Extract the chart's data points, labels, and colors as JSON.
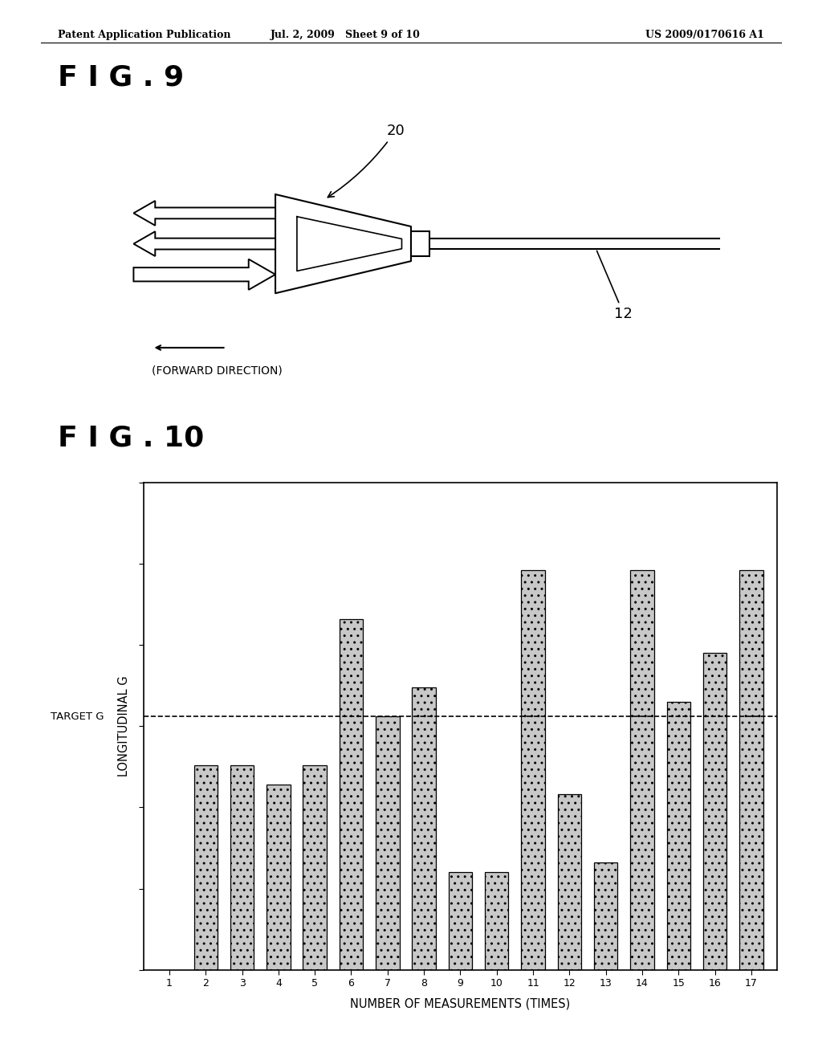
{
  "header_left": "Patent Application Publication",
  "header_mid": "Jul. 2, 2009   Sheet 9 of 10",
  "header_right": "US 2009/0170616 A1",
  "fig9_label": "F I G . 9",
  "fig10_label": "F I G . 10",
  "label_20": "20",
  "label_12": "12",
  "forward_direction": "(FORWARD DIRECTION)",
  "ylabel": "LONGITUDINAL G",
  "xlabel": "NUMBER OF MEASUREMENTS (TIMES)",
  "target_g_label": "TARGET G",
  "bar_values": [
    0,
    0.42,
    0.42,
    0.38,
    0.42,
    0.72,
    0.52,
    0.58,
    0.2,
    0.2,
    0.82,
    0.36,
    0.22,
    0.82,
    0.55,
    0.65,
    0.82
  ],
  "target_g": 0.52,
  "background_color": "#ffffff",
  "bar_hatch": "..",
  "tick_labels": [
    "1",
    "2",
    "3",
    "4",
    "5",
    "6",
    "7",
    "8",
    "9",
    "10",
    "11",
    "12",
    "13",
    "14",
    "15",
    "16",
    "17"
  ],
  "ylim": [
    0,
    1.0
  ],
  "ytick_count": 7,
  "header_fontsize": 9,
  "fig_label_fontsize": 26
}
